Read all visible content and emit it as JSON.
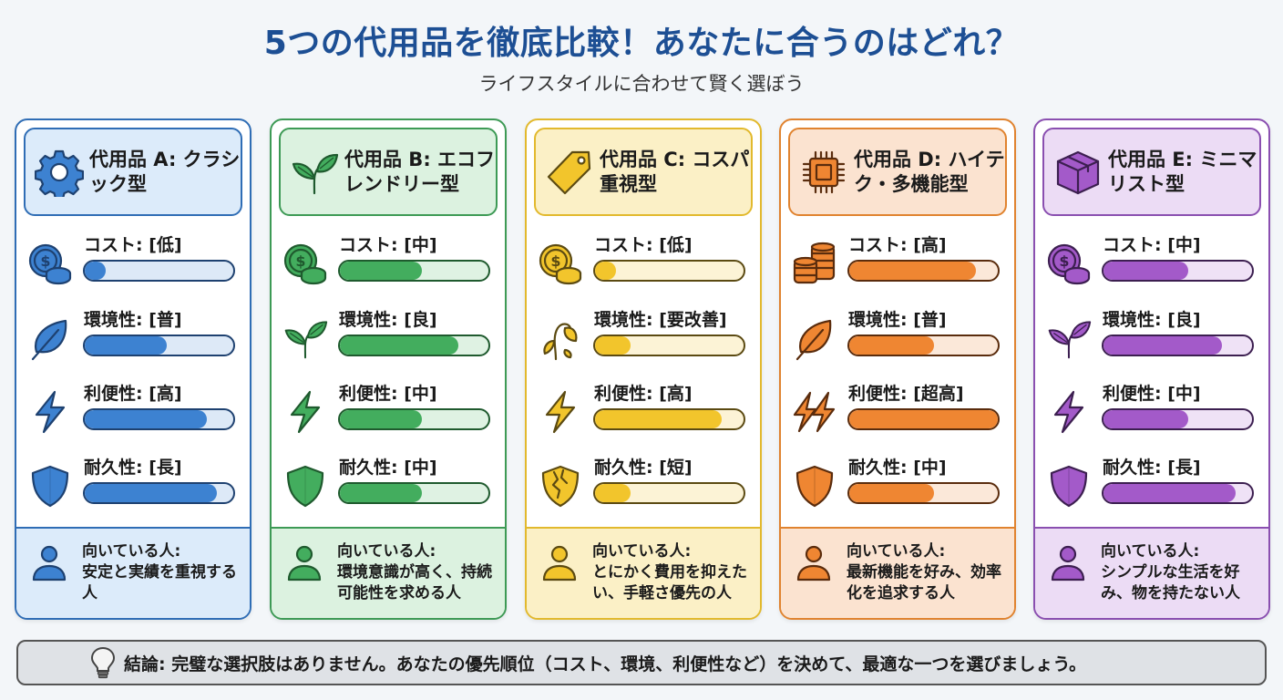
{
  "header": {
    "title": "5つの代用品を徹底比較！あなたに合うのはどれ？",
    "subtitle": "ライフスタイルに合わせて賢く選ぼう"
  },
  "cards": [
    {
      "id": "A",
      "name": "代用品 A: クラシック型",
      "icon": "gear-icon",
      "colors": {
        "border": "#2f6db5",
        "fill": "#3d82d1",
        "dark": "#1e4170",
        "bg": "#dcebfa",
        "track": "#dde9f7"
      },
      "metrics": [
        {
          "label": "コスト: [低]",
          "icon": "coins-icon",
          "value": 14
        },
        {
          "label": "環境性: [普]",
          "icon": "leaf-icon",
          "value": 55
        },
        {
          "label": "利便性: [高]",
          "icon": "lightning-icon",
          "value": 82
        },
        {
          "label": "耐久性: [長]",
          "icon": "shield-icon",
          "value": 89
        }
      ],
      "target_label": "向いている人:",
      "target_text": "安定と実績を重視する人"
    },
    {
      "id": "B",
      "name": "代用品 B: エコフレンドリー型",
      "icon": "sprout-icon",
      "colors": {
        "border": "#3d9a55",
        "fill": "#43ad5e",
        "dark": "#1f5a2e",
        "bg": "#dcf2e0",
        "track": "#dff2e3"
      },
      "metrics": [
        {
          "label": "コスト: [中]",
          "icon": "coins-icon",
          "value": 55
        },
        {
          "label": "環境性: [良]",
          "icon": "sprout-icon",
          "value": 80
        },
        {
          "label": "利便性: [中]",
          "icon": "lightning-icon",
          "value": 55
        },
        {
          "label": "耐久性: [中]",
          "icon": "shield-icon",
          "value": 55
        }
      ],
      "target_label": "向いている人:",
      "target_text": "環境意識が高く、持続可能性を求める人"
    },
    {
      "id": "C",
      "name": "代用品 C: コスパ重視型",
      "icon": "price-tag-icon",
      "colors": {
        "border": "#e2b92d",
        "fill": "#f2c52c",
        "dark": "#5b4a12",
        "bg": "#fbf0c6",
        "track": "#fcf3d6"
      },
      "metrics": [
        {
          "label": "コスト: [低]",
          "icon": "coins-icon",
          "value": 14
        },
        {
          "label": "環境性: [要改善]",
          "icon": "wilted-plant-icon",
          "value": 24
        },
        {
          "label": "利便性: [高]",
          "icon": "lightning-icon",
          "value": 85
        },
        {
          "label": "耐久性: [短]",
          "icon": "cracked-shield-icon",
          "value": 24
        }
      ],
      "target_label": "向いている人:",
      "target_text": "とにかく費用を抑えたい、手軽さ優先の人"
    },
    {
      "id": "D",
      "name": "代用品 D: ハイテク・多機能型",
      "icon": "chip-icon",
      "colors": {
        "border": "#e0832f",
        "fill": "#ef8632",
        "dark": "#5a2c0d",
        "bg": "#fbe3d0",
        "track": "#fbe8d9"
      },
      "metrics": [
        {
          "label": "コスト: [高]",
          "icon": "coin-stack-icon",
          "value": 85
        },
        {
          "label": "環境性: [普]",
          "icon": "leaf-icon",
          "value": 57
        },
        {
          "label": "利便性: [超高]",
          "icon": "double-lightning-icon",
          "value": 100
        },
        {
          "label": "耐久性: [中]",
          "icon": "shield-icon",
          "value": 57
        }
      ],
      "target_label": "向いている人:",
      "target_text": "最新機能を好み、効率化を追求する人"
    },
    {
      "id": "E",
      "name": "代用品 E: ミニマリスト型",
      "icon": "box-icon",
      "colors": {
        "border": "#8a4fb0",
        "fill": "#a35ac9",
        "dark": "#3c1f50",
        "bg": "#ecdcf5",
        "track": "#efe2f6"
      },
      "metrics": [
        {
          "label": "コスト: [中]",
          "icon": "coins-icon",
          "value": 57
        },
        {
          "label": "環境性: [良]",
          "icon": "sprout-icon",
          "value": 80
        },
        {
          "label": "利便性: [中]",
          "icon": "lightning-icon",
          "value": 57
        },
        {
          "label": "耐久性: [長]",
          "icon": "shield-icon",
          "value": 89
        }
      ],
      "target_label": "向いている人:",
      "target_text": "シンプルな生活を好み、物を持たない人"
    }
  ],
  "conclusion": {
    "icon": "lightbulb-icon",
    "text": "結論: 完璧な選択肢はありません。あなたの優先順位（コスト、環境、利便性など）を決めて、最適な一つを選びましょう。"
  }
}
